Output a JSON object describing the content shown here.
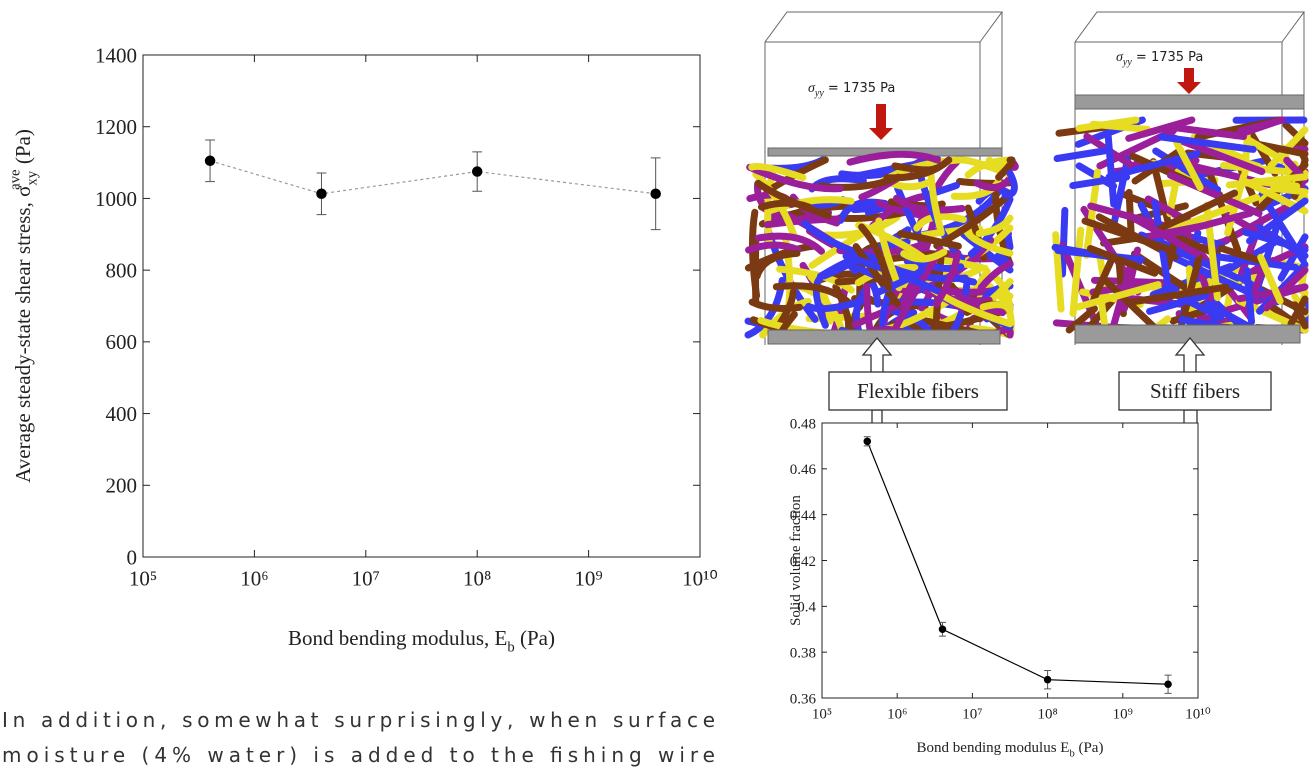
{
  "chart_data": [
    {
      "type": "line",
      "xscale": "log",
      "x": [
        400000,
        4000000,
        100000000,
        4000000000
      ],
      "series": [
        {
          "color": "#000000",
          "line_color": "#999999",
          "line_style": "dashed",
          "values": [
            1105,
            1013,
            1075,
            1013
          ],
          "errors": [
            58,
            58,
            55,
            100
          ]
        }
      ],
      "xlim": [
        100000,
        10000000000
      ],
      "xticks": [
        {
          "value": 100000,
          "label": "10⁵"
        },
        {
          "value": 1000000,
          "label": "10⁶"
        },
        {
          "value": 10000000,
          "label": "10⁷"
        },
        {
          "value": 100000000,
          "label": "10⁸"
        },
        {
          "value": 1000000000,
          "label": "10⁹"
        },
        {
          "value": 10000000000,
          "label": "10¹⁰"
        }
      ],
      "ylim": [
        0,
        1400
      ],
      "yticks": [
        0,
        200,
        400,
        600,
        800,
        1000,
        1200,
        1400
      ],
      "xlabel": {
        "text": "Bond bending modulus, E",
        "subscript": "b",
        "suffix": " (Pa)"
      },
      "ylabel": {
        "text": "Average steady-state shear stress, σ",
        "subscript": "xy",
        "superscript": "ave",
        "suffix": " (Pa)"
      }
    },
    {
      "type": "line",
      "xscale": "log",
      "x": [
        400000,
        4000000,
        100000000,
        4000000000
      ],
      "series": [
        {
          "color": "#000000",
          "line_color": "#000000",
          "line_style": "solid",
          "values": [
            0.472,
            0.39,
            0.368,
            0.366
          ],
          "errors": [
            0.002,
            0.003,
            0.004,
            0.004
          ]
        }
      ],
      "xlim": [
        100000,
        10000000000
      ],
      "xticks": [
        {
          "value": 100000,
          "label": "10⁵"
        },
        {
          "value": 1000000,
          "label": "10⁶"
        },
        {
          "value": 10000000,
          "label": "10⁷"
        },
        {
          "value": 100000000,
          "label": "10⁸"
        },
        {
          "value": 1000000000,
          "label": "10⁹"
        },
        {
          "value": 10000000000,
          "label": "10¹⁰"
        }
      ],
      "ylim": [
        0.36,
        0.48
      ],
      "yticks": [
        0.36,
        0.38,
        0.4,
        0.42,
        0.44,
        0.46,
        0.48
      ],
      "xlabel": {
        "text": "Bond bending modulus E",
        "subscript": "b",
        "suffix": " (Pa)"
      },
      "ylabel": {
        "text": "Solid volume fraction"
      }
    }
  ],
  "figure": {
    "stress_labels": [
      {
        "symbol": "σ",
        "subscript": "yy",
        "text": " = 1735 Pa"
      },
      {
        "symbol": "σ",
        "subscript": "yy",
        "text": " = 1735 Pa"
      }
    ],
    "fiber_labels": [
      "Flexible fibers",
      "Stiff fibers"
    ]
  },
  "paragraph": [
    "In addition, somewhat surprisingly, when surface",
    "moisture (4% water) is added to the fishing wire"
  ]
}
